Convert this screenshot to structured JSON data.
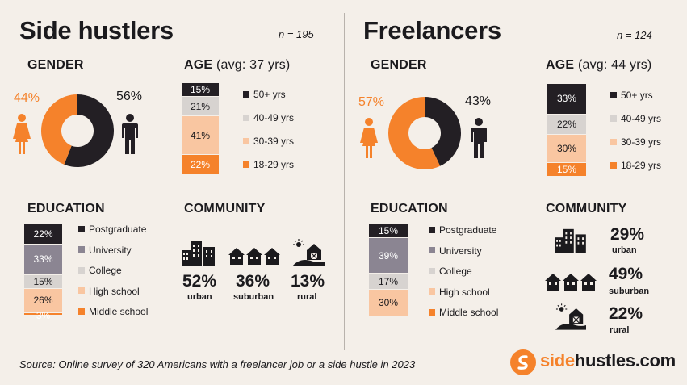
{
  "colors": {
    "postgraduate": "#231f24",
    "university": "#8b8592",
    "college": "#d7d3d0",
    "high_school": "#f9c6a1",
    "middle_school": "#f5822b",
    "age_50plus": "#231f24",
    "age_40_49": "#d7d3d0",
    "age_30_39": "#f9c6a1",
    "age_18_29": "#f5822b",
    "female": "#f5822b",
    "male": "#231f24",
    "background": "#f4efe9"
  },
  "left": {
    "title": "Side hustlers",
    "n": "n = 195",
    "gender_title": "GENDER",
    "female_pct": "44%",
    "male_pct": "56%",
    "age_title": "AGE",
    "age_avg": "(avg: 37 yrs)",
    "education_title": "EDUCATION",
    "community_title": "COMMUNITY",
    "community": [
      {
        "pct": "52%",
        "label": "urban",
        "icon": "city-buildings-icon"
      },
      {
        "pct": "36%",
        "label": "suburban",
        "icon": "suburban-houses-icon"
      },
      {
        "pct": "13%",
        "label": "rural",
        "icon": "barn-sun-icon"
      }
    ]
  },
  "right": {
    "title": "Freelancers",
    "n": "n = 124",
    "gender_title": "GENDER",
    "female_pct": "57%",
    "male_pct": "43%",
    "age_title": "AGE",
    "age_avg": "(avg: 44 yrs)",
    "education_title": "EDUCATION",
    "community_title": "COMMUNITY",
    "community": [
      {
        "pct": "29%",
        "label": "urban",
        "icon": "city-buildings-icon"
      },
      {
        "pct": "49%",
        "label": "suburban",
        "icon": "suburban-houses-icon"
      },
      {
        "pct": "22%",
        "label": "rural",
        "icon": "barn-sun-icon"
      }
    ]
  },
  "legends": {
    "age": [
      "50+ yrs",
      "40-49 yrs",
      "30-39 yrs",
      "18-29 yrs"
    ],
    "education": [
      "Postgraduate",
      "University",
      "College",
      "High school",
      "Middle school"
    ]
  },
  "source": "Source: Online survey of 320 Americans with a freelancer job or a side hustle in 2023",
  "logo": {
    "part1": "side",
    "part2": "hustles.com"
  },
  "chart_data": [
    {
      "type": "pie",
      "title": "GENDER",
      "group": "Side hustlers",
      "categories": [
        "female",
        "male"
      ],
      "values": [
        44,
        56
      ]
    },
    {
      "type": "bar",
      "title": "AGE (avg: 37 yrs)",
      "group": "Side hustlers",
      "stacked": true,
      "categories": [
        "50+ yrs",
        "40-49 yrs",
        "30-39 yrs",
        "18-29 yrs"
      ],
      "values": [
        15,
        21,
        41,
        22
      ],
      "labels": [
        "15%",
        "21%",
        "41%",
        "22%"
      ]
    },
    {
      "type": "bar",
      "title": "EDUCATION",
      "group": "Side hustlers",
      "stacked": true,
      "categories": [
        "Postgraduate",
        "University",
        "College",
        "High school",
        "Middle school"
      ],
      "values": [
        22,
        33,
        15,
        26,
        3
      ],
      "labels": [
        "22%",
        "33%",
        "15%",
        "26%",
        "3%"
      ]
    },
    {
      "type": "pie",
      "title": "GENDER",
      "group": "Freelancers",
      "categories": [
        "female",
        "male"
      ],
      "values": [
        57,
        43
      ]
    },
    {
      "type": "bar",
      "title": "AGE (avg: 44 yrs)",
      "group": "Freelancers",
      "stacked": true,
      "categories": [
        "50+ yrs",
        "40-49 yrs",
        "30-39 yrs",
        "18-29 yrs"
      ],
      "values": [
        33,
        22,
        30,
        15
      ],
      "labels": [
        "33%",
        "22%",
        "30%",
        "15%"
      ]
    },
    {
      "type": "bar",
      "title": "EDUCATION",
      "group": "Freelancers",
      "stacked": true,
      "categories": [
        "Postgraduate",
        "University",
        "College",
        "High school",
        "Middle school"
      ],
      "values": [
        15,
        39,
        17,
        30,
        0
      ],
      "labels": [
        "15%",
        "39%",
        "17%",
        "30%",
        ""
      ]
    }
  ]
}
